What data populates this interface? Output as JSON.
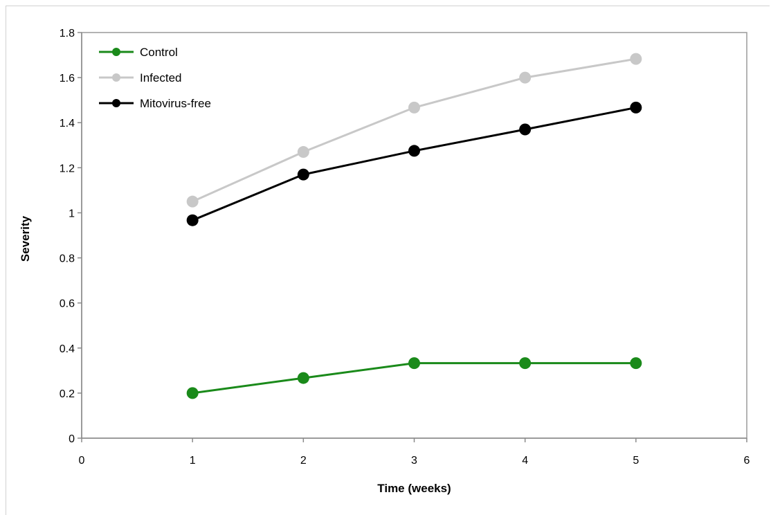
{
  "chart_data": {
    "type": "line",
    "xlabel": "Time (weeks)",
    "ylabel": "Severity",
    "xlim": [
      0,
      6
    ],
    "ylim": [
      0,
      1.8
    ],
    "xticks": [
      0,
      1,
      2,
      3,
      4,
      5,
      6
    ],
    "yticks": [
      0,
      0.2,
      0.4,
      0.6,
      0.8,
      1,
      1.2,
      1.4,
      1.6,
      1.8
    ],
    "x": [
      1,
      2,
      3,
      4,
      5
    ],
    "grid": false,
    "legend_position": "top-left",
    "series": [
      {
        "name": "Control",
        "color": "#1a8a1a",
        "values": [
          0.2,
          0.267,
          0.333,
          0.333,
          0.333
        ]
      },
      {
        "name": "Infected",
        "color": "#c8c8c8",
        "values": [
          1.05,
          1.27,
          1.467,
          1.6,
          1.683
        ]
      },
      {
        "name": "Mitovirus-free",
        "color": "#000000",
        "values": [
          0.967,
          1.17,
          1.275,
          1.37,
          1.467
        ]
      }
    ]
  }
}
